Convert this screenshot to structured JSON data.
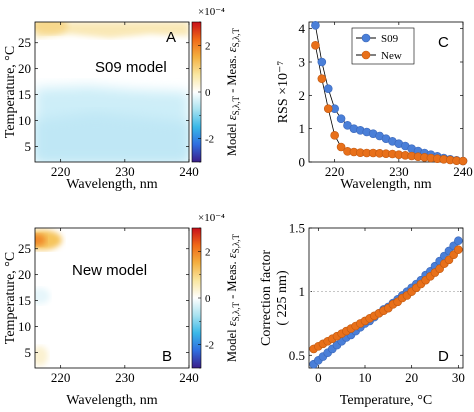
{
  "colors": {
    "blue_series": "#4a7fd8",
    "orange_series": "#e8701a",
    "map_bg": "#ffffff",
    "ref_line": "#b4b4b4"
  },
  "chart_data": [
    {
      "panel": "A",
      "type": "heatmap",
      "annotation": "S09 model",
      "xlabel": "Wavelength, nm",
      "ylabel": "Temperature, °C",
      "xlim": [
        216,
        240
      ],
      "ylim": [
        2,
        29
      ],
      "xticks": [
        "220",
        "230",
        "240"
      ],
      "yticks": [
        "5",
        "10",
        "15",
        "20",
        "25"
      ],
      "regions": [
        {
          "label": "warm band near 26-28 °C",
          "value": 0.35
        },
        {
          "label": "near zero 18-25 °C",
          "value": 0.0
        },
        {
          "label": "cool region below 18 °C",
          "value": -0.5
        }
      ]
    },
    {
      "panel": "B",
      "type": "heatmap",
      "annotation": "New model",
      "xlabel": "Wavelength, nm",
      "ylabel": "Temperature, °C",
      "xlim": [
        216,
        240
      ],
      "ylim": [
        2,
        29
      ],
      "xticks": [
        "220",
        "230",
        "240"
      ],
      "yticks": [
        "5",
        "10",
        "15",
        "20",
        "25"
      ],
      "regions": [
        {
          "label": "hot corner near 217 nm, 26-28 °C",
          "value": 1.2
        },
        {
          "label": "elsewhere",
          "value": 0.0
        }
      ]
    },
    {
      "panel": "colorbar",
      "exponent": "×10⁻⁴",
      "ticks": [
        "2",
        "0",
        "-2"
      ],
      "ticks_b": [
        "2",
        "0",
        "-2"
      ],
      "range": [
        -3,
        3
      ],
      "label": "Model ε_{S,λ,T} - Meas. ε_{S,λ,T}",
      "colors": [
        "#3b1e8a",
        "#2f6ee0",
        "#3ab8e8",
        "#a8e2f0",
        "#ffffff",
        "#f9e6a0",
        "#f4b040",
        "#f06a18",
        "#c8101a"
      ]
    },
    {
      "panel": "C",
      "type": "line",
      "ylabel": "RSS ×10⁻⁷",
      "xlabel": "Wavelength, nm",
      "xlim": [
        216,
        240
      ],
      "ylim": [
        0,
        4.2
      ],
      "xticks": [
        "220",
        "230",
        "240"
      ],
      "yticks": [
        "0",
        "1",
        "2",
        "3",
        "4"
      ],
      "legend_position": "top-right",
      "x": [
        217,
        218,
        219,
        220,
        221,
        222,
        223,
        224,
        225,
        226,
        227,
        228,
        229,
        230,
        231,
        232,
        233,
        234,
        235,
        236,
        237,
        238,
        239,
        240
      ],
      "series": [
        {
          "name": "S09",
          "values": [
            4.1,
            3.0,
            2.2,
            1.6,
            1.3,
            1.1,
            1.0,
            0.95,
            0.9,
            0.85,
            0.78,
            0.7,
            0.62,
            0.55,
            0.48,
            0.4,
            0.33,
            0.27,
            0.22,
            0.17,
            0.12,
            0.08,
            0.05,
            0.03
          ]
        },
        {
          "name": "New",
          "values": [
            3.5,
            2.5,
            1.6,
            0.8,
            0.45,
            0.32,
            0.3,
            0.28,
            0.27,
            0.27,
            0.26,
            0.25,
            0.24,
            0.22,
            0.2,
            0.18,
            0.16,
            0.14,
            0.12,
            0.1,
            0.08,
            0.06,
            0.04,
            0.03
          ]
        }
      ]
    },
    {
      "panel": "D",
      "type": "line",
      "ylabel": "Correction factor",
      "ylabel2": "( 225 nm)",
      "xlabel": "Temperature, °C",
      "xlim": [
        -2,
        31
      ],
      "ylim": [
        0.4,
        1.5
      ],
      "xticks": [
        "0",
        "10",
        "20",
        "30"
      ],
      "yticks": [
        "0.5",
        "1",
        "1.5"
      ],
      "reference_line": 1.0,
      "x": [
        -1,
        0,
        1,
        2,
        3,
        4,
        5,
        6,
        7,
        8,
        9,
        10,
        11,
        12,
        13,
        14,
        15,
        16,
        17,
        18,
        19,
        20,
        21,
        22,
        23,
        24,
        25,
        26,
        27,
        28,
        29,
        30
      ],
      "series": [
        {
          "name": "S09",
          "values": [
            0.43,
            0.46,
            0.49,
            0.52,
            0.55,
            0.58,
            0.61,
            0.64,
            0.66,
            0.69,
            0.72,
            0.75,
            0.77,
            0.8,
            0.83,
            0.86,
            0.88,
            0.91,
            0.94,
            0.97,
            1.0,
            1.03,
            1.06,
            1.09,
            1.13,
            1.16,
            1.2,
            1.24,
            1.28,
            1.32,
            1.36,
            1.4
          ]
        },
        {
          "name": "New",
          "values": [
            0.55,
            0.57,
            0.59,
            0.61,
            0.63,
            0.65,
            0.67,
            0.69,
            0.71,
            0.73,
            0.75,
            0.77,
            0.79,
            0.81,
            0.83,
            0.85,
            0.87,
            0.9,
            0.92,
            0.95,
            0.97,
            1.0,
            1.03,
            1.06,
            1.09,
            1.12,
            1.15,
            1.18,
            1.22,
            1.25,
            1.29,
            1.33
          ]
        }
      ]
    }
  ],
  "panel_letters": {
    "a": "A",
    "b": "B",
    "c": "C",
    "d": "D"
  }
}
